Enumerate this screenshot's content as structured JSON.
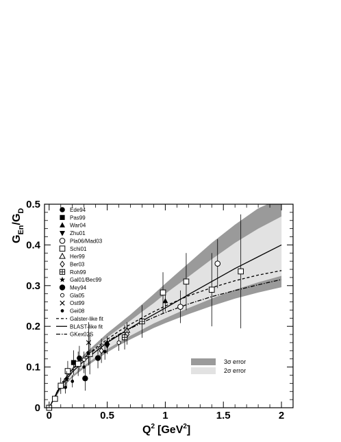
{
  "chart_data": {
    "type": "scatter",
    "xlabel_main": "Q",
    "xlabel_sup": "2",
    "xlabel_unit": "[GeV",
    "xlabel_unit_sup": "2",
    "xlabel_close": "]",
    "ylabel_main": "G",
    "ylabel_sub1": "En",
    "ylabel_mid": "/G",
    "ylabel_sub2": "D",
    "xlim": [
      -0.04,
      2.1
    ],
    "ylim": [
      0,
      0.5
    ],
    "x_ticks": [
      {
        "v": 0,
        "label": "0"
      },
      {
        "v": 0.5,
        "label": "0.5"
      },
      {
        "v": 1,
        "label": "1"
      },
      {
        "v": 1.5,
        "label": "1.5"
      },
      {
        "v": 2,
        "label": "2"
      }
    ],
    "y_ticks": [
      {
        "v": 0,
        "label": "0"
      },
      {
        "v": 0.1,
        "label": "0.1"
      },
      {
        "v": 0.2,
        "label": "0.2"
      },
      {
        "v": 0.3,
        "label": "0.3"
      },
      {
        "v": 0.4,
        "label": "0.4"
      },
      {
        "v": 0.5,
        "label": "0.5"
      }
    ],
    "legend_position": "top-left",
    "series": [
      {
        "name": "Ede94",
        "marker": "circle-filled",
        "points": [
          [
            0.26,
            0.122,
            0.03
          ]
        ]
      },
      {
        "name": "Pas99",
        "marker": "square-filled",
        "points": [
          [
            0.21,
            0.111,
            0.03
          ]
        ]
      },
      {
        "name": "War04",
        "marker": "triangle-up-filled",
        "points": [
          [
            0.5,
            0.16,
            0.015
          ],
          [
            1.0,
            0.262,
            0.025
          ]
        ]
      },
      {
        "name": "Zhu01",
        "marker": "triangle-down-filled",
        "points": [
          [
            0.5,
            0.152,
            0.02
          ]
        ]
      },
      {
        "name": "Pla06/Mad03",
        "marker": "circle-open",
        "points": [
          [
            1.13,
            0.248,
            0.04
          ],
          [
            1.45,
            0.354,
            0.06
          ]
        ]
      },
      {
        "name": "Schi01",
        "marker": "square-open",
        "points": [
          [
            0.0,
            0.0,
            0.003
          ],
          [
            0.05,
            0.022,
            0.004
          ],
          [
            0.1,
            0.054,
            0.02
          ],
          [
            0.16,
            0.09,
            0.025
          ],
          [
            0.25,
            0.108,
            0.03
          ],
          [
            0.35,
            0.132,
            0.05
          ],
          [
            0.98,
            0.283,
            0.05
          ],
          [
            1.18,
            0.31,
            0.07
          ],
          [
            1.4,
            0.29,
            0.09
          ],
          [
            1.65,
            0.335,
            0.14
          ]
        ]
      },
      {
        "name": "Her99",
        "marker": "triangle-up-open",
        "points": [
          [
            0.67,
            0.19,
            0.02
          ]
        ]
      },
      {
        "name": "Ber03",
        "marker": "diamond-open",
        "points": [
          [
            0.45,
            0.14,
            0.03
          ],
          [
            0.67,
            0.18,
            0.025
          ]
        ]
      },
      {
        "name": "Roh99",
        "marker": "square-cross",
        "points": [
          [
            0.65,
            0.173,
            0.03
          ],
          [
            0.8,
            0.212,
            0.04
          ]
        ]
      },
      {
        "name": "Gal01/Bec99",
        "marker": "star",
        "points": [
          [
            0.15,
            0.07,
            0.02
          ],
          [
            0.34,
            0.134,
            0.03
          ]
        ]
      },
      {
        "name": "Mey94",
        "marker": "circle-filled-large",
        "points": [
          [
            0.31,
            0.072,
            0.03
          ],
          [
            0.42,
            0.122,
            0.025
          ]
        ]
      },
      {
        "name": "Gla05",
        "marker": "circle-open-small",
        "points": [
          [
            0.3,
            0.118,
            0.02
          ],
          [
            0.6,
            0.16,
            0.02
          ]
        ]
      },
      {
        "name": "Ost99",
        "marker": "cross",
        "points": [
          [
            0.34,
            0.16,
            0.05
          ]
        ]
      },
      {
        "name": "Gei08",
        "marker": "circle-filled-small",
        "points": [
          [
            0.14,
            0.05,
            0.015
          ],
          [
            0.2,
            0.065,
            0.015
          ],
          [
            0.3,
            0.1,
            0.015
          ],
          [
            0.48,
            0.138,
            0.02
          ]
        ]
      }
    ],
    "fits": [
      {
        "name": "Galster-like fit",
        "dash": "4,3",
        "x": [
          0,
          0.1,
          0.2,
          0.3,
          0.4,
          0.5,
          0.6,
          0.7,
          0.8,
          0.9,
          1.0,
          1.2,
          1.4,
          1.6,
          1.8,
          2.0
        ],
        "y": [
          0,
          0.056,
          0.093,
          0.122,
          0.147,
          0.168,
          0.188,
          0.205,
          0.221,
          0.236,
          0.25,
          0.275,
          0.295,
          0.312,
          0.326,
          0.337
        ]
      },
      {
        "name": "BLAST-like fit",
        "dash": "",
        "x": [
          0,
          0.1,
          0.2,
          0.3,
          0.4,
          0.5,
          0.6,
          0.7,
          0.8,
          0.9,
          1.0,
          1.2,
          1.4,
          1.6,
          1.8,
          2.0
        ],
        "y": [
          0,
          0.052,
          0.088,
          0.115,
          0.138,
          0.16,
          0.178,
          0.196,
          0.213,
          0.229,
          0.245,
          0.278,
          0.31,
          0.342,
          0.371,
          0.4
        ]
      },
      {
        "name": "GKex02S",
        "dash": "6,2,1.5,2",
        "x": [
          0,
          0.1,
          0.2,
          0.3,
          0.4,
          0.5,
          0.6,
          0.7,
          0.8,
          0.9,
          1.0,
          1.2,
          1.4,
          1.6,
          1.8,
          2.0
        ],
        "y": [
          0,
          0.058,
          0.095,
          0.122,
          0.144,
          0.163,
          0.18,
          0.195,
          0.209,
          0.222,
          0.234,
          0.255,
          0.273,
          0.288,
          0.302,
          0.315
        ]
      }
    ],
    "bands": [
      {
        "name": "3σ error",
        "color": "#9a9a9a",
        "x": [
          0,
          0.1,
          0.2,
          0.3,
          0.4,
          0.5,
          0.6,
          0.7,
          0.8,
          0.9,
          1.0,
          1.2,
          1.4,
          1.6,
          1.8,
          2.0
        ],
        "lower": [
          0,
          0.045,
          0.074,
          0.097,
          0.117,
          0.136,
          0.153,
          0.168,
          0.182,
          0.196,
          0.208,
          0.23,
          0.25,
          0.268,
          0.283,
          0.296
        ],
        "upper": [
          0,
          0.058,
          0.099,
          0.131,
          0.157,
          0.183,
          0.206,
          0.229,
          0.254,
          0.279,
          0.305,
          0.355,
          0.405,
          0.45,
          0.49,
          0.515
        ]
      },
      {
        "name": "2σ error",
        "color": "#e2e2e2",
        "x": [
          0,
          0.1,
          0.2,
          0.3,
          0.4,
          0.5,
          0.6,
          0.7,
          0.8,
          0.9,
          1.0,
          1.2,
          1.4,
          1.6,
          1.8,
          2.0
        ],
        "lower": [
          0,
          0.048,
          0.079,
          0.103,
          0.124,
          0.144,
          0.161,
          0.177,
          0.192,
          0.207,
          0.22,
          0.245,
          0.268,
          0.29,
          0.308,
          0.324
        ],
        "upper": [
          0,
          0.055,
          0.094,
          0.124,
          0.149,
          0.173,
          0.194,
          0.214,
          0.236,
          0.257,
          0.28,
          0.322,
          0.365,
          0.405,
          0.44,
          0.47
        ]
      }
    ]
  }
}
